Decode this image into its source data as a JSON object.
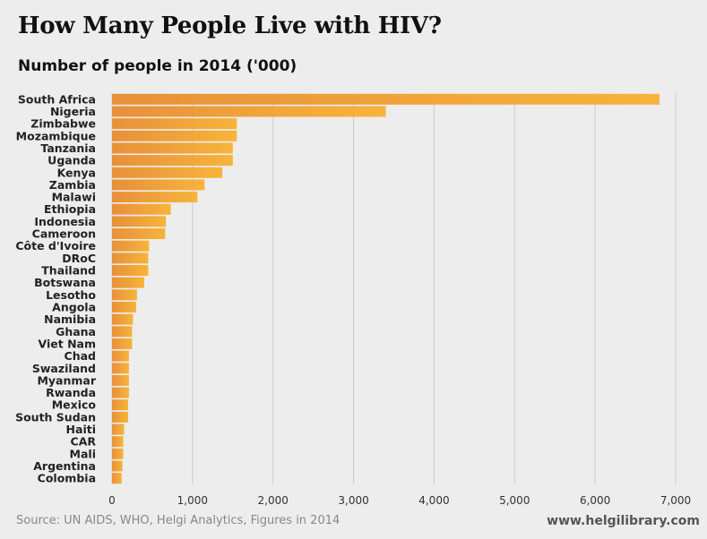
{
  "header": {
    "title": "How Many People Live with HIV?",
    "subtitle": "Number of people in 2014 ('000)"
  },
  "footer": {
    "source": "Source: UN AIDS, WHO, Helgi Analytics, Figures in 2014",
    "website": "www.helgilibrary.com"
  },
  "colors": {
    "bar_start": "#e8903a",
    "bar_end": "#f7b43a",
    "grid": "#cccccc",
    "background": "#ededed"
  },
  "chart_data": {
    "type": "bar",
    "orientation": "horizontal",
    "title": "How Many People Live with HIV?",
    "subtitle": "Number of people in 2014 ('000)",
    "xlabel": "",
    "ylabel": "",
    "xlim": [
      0,
      7000
    ],
    "xticks": [
      0,
      1000,
      2000,
      3000,
      4000,
      5000,
      6000,
      7000
    ],
    "xtick_labels": [
      "0",
      "1,000",
      "2,000",
      "3,000",
      "4,000",
      "5,000",
      "6,000",
      "7,000"
    ],
    "grid": true,
    "categories": [
      "South Africa",
      "Nigeria",
      "Zimbabwe",
      "Mozambique",
      "Tanzania",
      "Uganda",
      "Kenya",
      "Zambia",
      "Malawi",
      "Ethiopia",
      "Indonesia",
      "Cameroon",
      "Côte d'Ivoire",
      "DRoC",
      "Thailand",
      "Botswana",
      "Lesotho",
      "Angola",
      "Namibia",
      "Ghana",
      "Viet Nam",
      "Chad",
      "Swaziland",
      "Myanmar",
      "Rwanda",
      "Mexico",
      "South Sudan",
      "Haiti",
      "CAR",
      "Mali",
      "Argentina",
      "Colombia"
    ],
    "values": [
      6800,
      3400,
      1550,
      1550,
      1500,
      1500,
      1370,
      1150,
      1060,
      730,
      670,
      660,
      460,
      450,
      450,
      400,
      310,
      300,
      260,
      250,
      250,
      210,
      210,
      210,
      210,
      200,
      200,
      150,
      140,
      140,
      130,
      120
    ]
  }
}
